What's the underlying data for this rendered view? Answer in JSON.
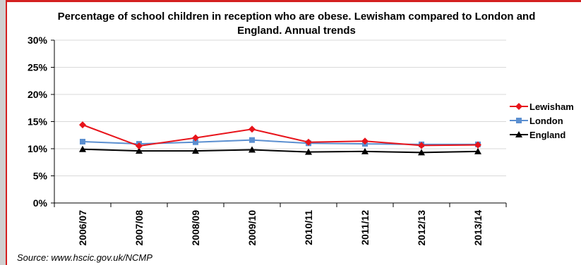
{
  "chart_data": {
    "type": "line",
    "title": "Percentage of school children in reception who are obese. Lewisham compared to London and England. Annual trends",
    "xlabel": "",
    "ylabel": "",
    "categories": [
      "2006/07",
      "2007/08",
      "2008/09",
      "2009/10",
      "2010/11",
      "2011/12",
      "2012/13",
      "2013/14"
    ],
    "ylim": [
      0,
      30
    ],
    "yticks": [
      "0%",
      "5%",
      "10%",
      "15%",
      "20%",
      "25%",
      "30%"
    ],
    "grid": true,
    "legend_position": "right",
    "series": [
      {
        "name": "Lewisham",
        "color": "#e8141b",
        "marker": "diamond",
        "values": [
          14.4,
          10.5,
          12.0,
          13.6,
          11.2,
          11.4,
          10.6,
          10.7
        ]
      },
      {
        "name": "London",
        "color": "#5b8fd0",
        "marker": "square",
        "values": [
          11.3,
          10.9,
          11.2,
          11.6,
          11.0,
          10.9,
          10.8,
          10.8
        ]
      },
      {
        "name": "England",
        "color": "#000000",
        "marker": "triangle",
        "values": [
          9.9,
          9.6,
          9.6,
          9.8,
          9.4,
          9.5,
          9.3,
          9.5
        ]
      }
    ]
  },
  "source": "Source: www.hscic.gov.uk/NCMP"
}
